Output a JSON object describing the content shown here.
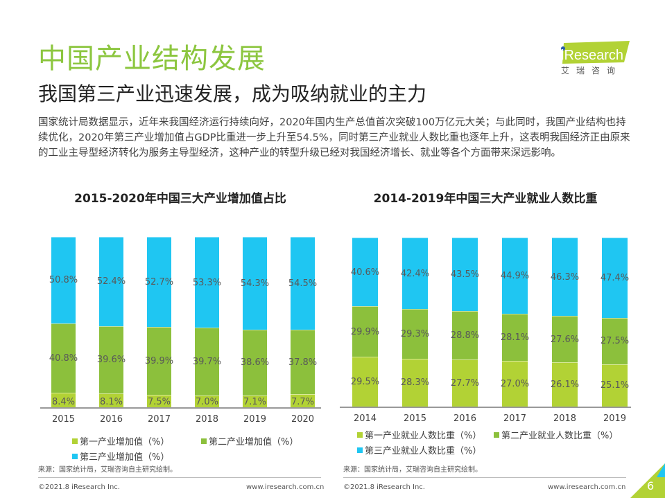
{
  "header": {
    "title": "中国产业结构发展",
    "subtitle": "我国第三产业迅速发展，成为吸纳就业的主力",
    "logo_text": "iResearch",
    "logo_cn": "艾 瑞 咨 询"
  },
  "body_text": "国家统计局数据显示，近年来我国经济运行持续向好，2020年国内生产总值首次突破100万亿元大关；与此同时，我国产业结构也持续优化，2020年第三产业增加值占GDP比重进一步上升至54.5%，同时第三产业就业人数比重也逐年上升，这表明我国经济正由原来的工业主导型经济转化为服务主导型经济，这种产业的转型升级已经对我国经济增长、就业等各个方面带来深远影响。",
  "colors": {
    "primary": "#b2d235",
    "secondary": "#8cc03c",
    "tertiary": "#1fc6f2",
    "title_green": "#8cc63f"
  },
  "chart_data": [
    {
      "type": "bar",
      "stacked": true,
      "title": "2015-2020年中国三大产业增加值占比",
      "categories": [
        "2015",
        "2016",
        "2017",
        "2018",
        "2019",
        "2020"
      ],
      "series": [
        {
          "name": "第一产业增加值（%）",
          "values": [
            8.4,
            8.1,
            7.5,
            7.0,
            7.1,
            7.7
          ]
        },
        {
          "name": "第二产业增加值（%）",
          "values": [
            40.8,
            39.6,
            39.9,
            39.7,
            38.6,
            37.8
          ]
        },
        {
          "name": "第三产业增加值（%）",
          "values": [
            50.8,
            52.4,
            52.7,
            53.3,
            54.3,
            54.5
          ]
        }
      ],
      "labels": [
        [
          "8.4%",
          "8.1%",
          "7.5%",
          "7.0%",
          "7.1%",
          "7.7%"
        ],
        [
          "40.8%",
          "39.6%",
          "39.9%",
          "39.7%",
          "38.6%",
          "37.8%"
        ],
        [
          "50.8%",
          "52.4%",
          "52.7%",
          "53.3%",
          "54.3%",
          "54.5%"
        ]
      ],
      "ylim": [
        0,
        100
      ],
      "grid": false,
      "legend": "bottom"
    },
    {
      "type": "bar",
      "stacked": true,
      "title": "2014-2019年中国三大产业就业人数比重",
      "categories": [
        "2014",
        "2015",
        "2016",
        "2017",
        "2018",
        "2019"
      ],
      "series": [
        {
          "name": "第一产业就业人数比重（%）",
          "values": [
            29.5,
            28.3,
            27.7,
            27.0,
            26.1,
            25.1
          ]
        },
        {
          "name": "第二产业就业人数比重（%）",
          "values": [
            29.9,
            29.3,
            28.8,
            28.1,
            27.6,
            27.5
          ]
        },
        {
          "name": "第三产业就业人数比重（%）",
          "values": [
            40.6,
            42.4,
            43.5,
            44.9,
            46.3,
            47.4
          ]
        }
      ],
      "labels": [
        [
          "29.5%",
          "28.3%",
          "27.7%",
          "27.0%",
          "26.1%",
          "25.1%"
        ],
        [
          "29.9%",
          "29.3%",
          "28.8%",
          "28.1%",
          "27.6%",
          "27.5%"
        ],
        [
          "40.6%",
          "42.4%",
          "43.5%",
          "44.9%",
          "46.3%",
          "47.4%"
        ]
      ],
      "ylim": [
        0,
        100
      ],
      "grid": false,
      "legend": "bottom"
    }
  ],
  "source": "来源：国家统计局，艾瑞咨询自主研究绘制。",
  "footer": {
    "copyright": "©2021.8 iResearch Inc.",
    "url": "www.iresearch.com.cn",
    "page": "6"
  }
}
